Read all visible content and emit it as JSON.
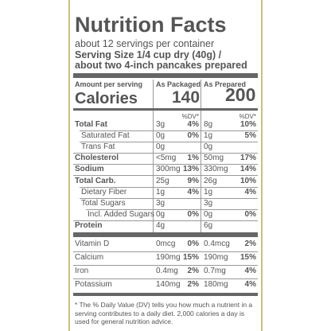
{
  "title": "Nutrition Facts",
  "servings": "about 12 servings per container",
  "serving_size": [
    "Serving Size 1/4 cup dry (40g) /",
    "about two 4-inch pancakes prepared"
  ],
  "header": {
    "amount_per_serving": "Amount per serving",
    "calories": "Calories",
    "packaged": {
      "label": "As Packaged",
      "calories": "140",
      "dv": "%DV*"
    },
    "prepared": {
      "label": "As Prepared",
      "calories": "200",
      "dv": "%DV*"
    }
  },
  "nutrients": [
    {
      "name": "Total Fat",
      "pkg": "3g",
      "pkg_dv": "4%",
      "prep": "8g",
      "prep_dv": "10%"
    },
    {
      "name": "Saturated Fat",
      "pkg": "0g",
      "pkg_dv": "0%",
      "prep": "1g",
      "prep_dv": "5%"
    },
    {
      "name": "Trans Fat",
      "pkg": "0g",
      "prep": "0g"
    },
    {
      "name": "Cholesterol",
      "pkg": "<5mg",
      "pkg_dv": "1%",
      "prep": "50mg",
      "prep_dv": "17%"
    },
    {
      "name": "Sodium",
      "pkg": "300mg",
      "pkg_dv": "13%",
      "prep": "330mg",
      "prep_dv": "14%"
    },
    {
      "name": "Total Carb.",
      "pkg": "25g",
      "pkg_dv": "9%",
      "prep": "26g",
      "prep_dv": "10%"
    },
    {
      "name": "Dietary Fiber",
      "pkg": "1g",
      "pkg_dv": "4%",
      "prep": "1g",
      "prep_dv": "4%"
    },
    {
      "name": "Total Sugars",
      "pkg": "3g",
      "prep": "3g"
    },
    {
      "name": "Incl. Added Sugars",
      "pkg": "0g",
      "pkg_dv": "0%",
      "prep": "0g",
      "prep_dv": "0%"
    },
    {
      "name": "Protein",
      "pkg": "4g",
      "prep": "6g"
    }
  ],
  "micronutrients": [
    {
      "name": "Vitamin D",
      "pkg": "0mcg",
      "pkg_dv": "0%",
      "prep": "0.4mcg",
      "prep_dv": "2%"
    },
    {
      "name": "Calcium",
      "pkg": "190mg",
      "pkg_dv": "15%",
      "prep": "190mg",
      "prep_dv": "15%"
    },
    {
      "name": "Iron",
      "pkg": "0.4mg",
      "pkg_dv": "2%",
      "prep": "0.7mg",
      "prep_dv": "4%"
    },
    {
      "name": "Potassium",
      "pkg": "140mg",
      "pkg_dv": "2%",
      "prep": "180mg",
      "prep_dv": "4%"
    }
  ],
  "footnote": "* The % Daily Value (DV) tells you how much a nutrient in a serving contributes to a daily diet. 2,000 calories a day is used for general nutrition advice."
}
